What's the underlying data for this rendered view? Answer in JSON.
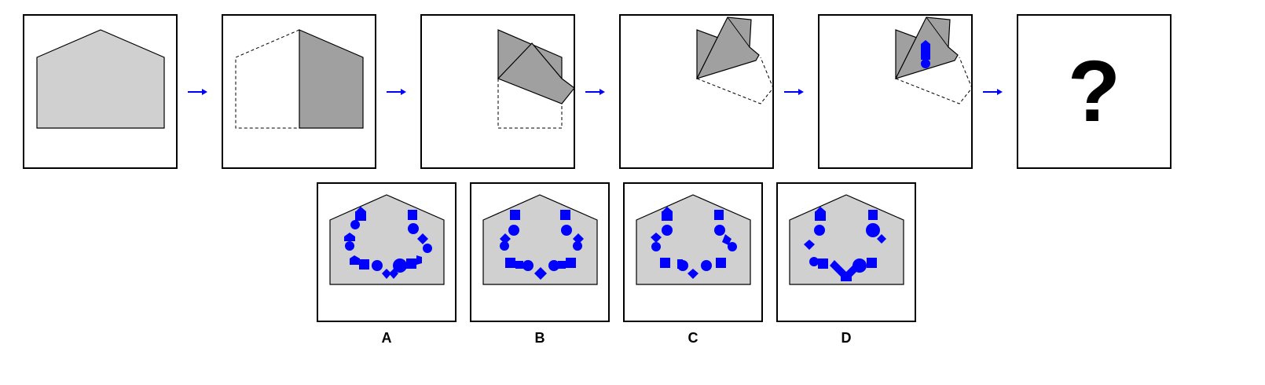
{
  "sequence": {
    "steps": [
      "step-1-unfolded",
      "step-2-fold-left",
      "step-3-fold-down",
      "step-4-fold-diagonal",
      "step-5-punch"
    ],
    "question_mark": "?"
  },
  "options": [
    {
      "label": "A"
    },
    {
      "label": "B"
    },
    {
      "label": "C"
    },
    {
      "label": "D"
    }
  ],
  "colors": {
    "paper": "#d0d0d0",
    "folded": "#a0a0a0",
    "hole": "#0000ff",
    "arrow": "#0000ff",
    "border": "#000000"
  }
}
